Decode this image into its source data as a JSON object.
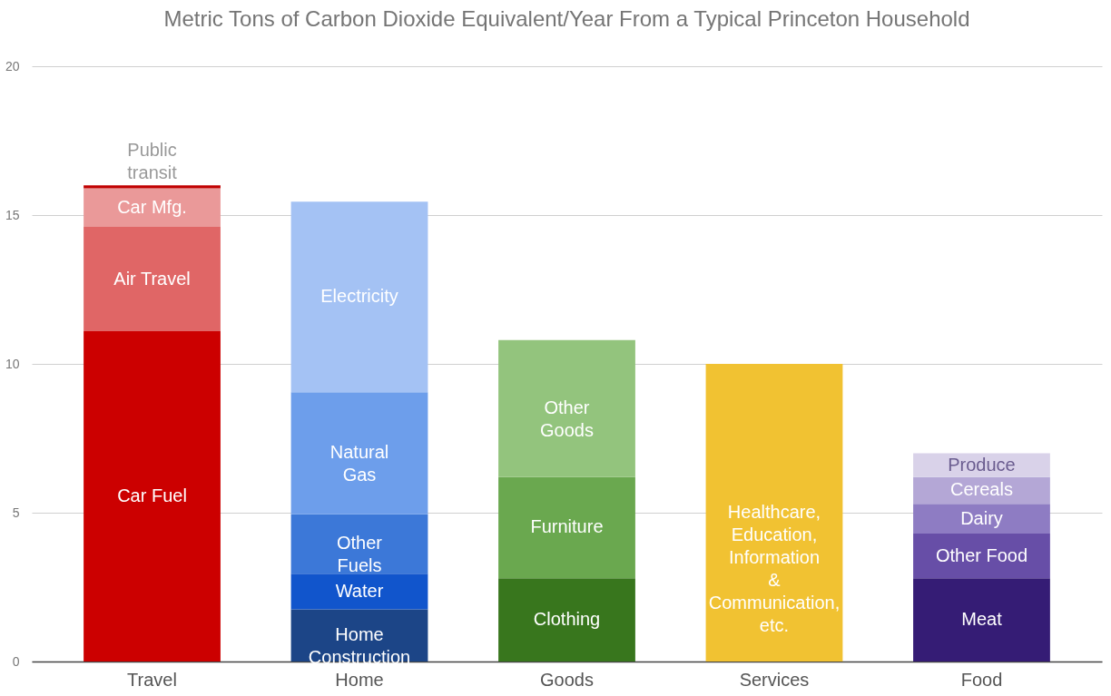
{
  "chart_data": {
    "type": "bar",
    "title": "Metric Tons of Carbon Dioxide Equivalent/Year From a Typical Princeton Household",
    "categories": [
      "Travel",
      "Home",
      "Goods",
      "Services",
      "Food"
    ],
    "stacked": true,
    "ylim": [
      0,
      20
    ],
    "yticks": [
      0,
      5,
      10,
      15,
      20
    ],
    "grid": "y",
    "legend": false,
    "series": [
      {
        "name": "Car Fuel",
        "color": "#cc0000",
        "values": [
          11.1,
          null,
          null,
          null,
          null
        ]
      },
      {
        "name": "Air Travel",
        "color": "#e06666",
        "values": [
          3.5,
          null,
          null,
          null,
          null
        ]
      },
      {
        "name": "Car Mfg.",
        "color": "#ea9999",
        "values": [
          1.3,
          null,
          null,
          null,
          null
        ]
      },
      {
        "name": "Public transit",
        "color": "#c00000",
        "values": [
          0.1,
          null,
          null,
          null,
          null
        ]
      },
      {
        "name": "Home Construction",
        "color": "#1c4587",
        "values": [
          null,
          1.75,
          null,
          null,
          null
        ]
      },
      {
        "name": "Water",
        "color": "#1155cc",
        "values": [
          null,
          1.2,
          null,
          null,
          null
        ]
      },
      {
        "name": "Other Fuels",
        "color": "#3c78d8",
        "values": [
          null,
          2.0,
          null,
          null,
          null
        ]
      },
      {
        "name": "Natural Gas",
        "color": "#6d9eeb",
        "values": [
          null,
          4.1,
          null,
          null,
          null
        ]
      },
      {
        "name": "Electricity",
        "color": "#a4c2f4",
        "values": [
          null,
          6.4,
          null,
          null,
          null
        ]
      },
      {
        "name": "Clothing",
        "color": "#38761d",
        "values": [
          null,
          null,
          2.8,
          null,
          null
        ]
      },
      {
        "name": "Furniture",
        "color": "#6aa84f",
        "values": [
          null,
          null,
          3.4,
          null,
          null
        ]
      },
      {
        "name": "Other Goods",
        "color": "#93c47d",
        "values": [
          null,
          null,
          4.6,
          null,
          null
        ]
      },
      {
        "name": "Healthcare, Education, Information & Communication, etc.",
        "color": "#f1c232",
        "values": [
          null,
          null,
          null,
          10.0,
          null
        ]
      },
      {
        "name": "Meat",
        "color": "#351c75",
        "values": [
          null,
          null,
          null,
          null,
          2.8
        ]
      },
      {
        "name": "Other Food",
        "color": "#674ea7",
        "values": [
          null,
          null,
          null,
          null,
          1.5
        ]
      },
      {
        "name": "Dairy",
        "color": "#8e7cc3",
        "values": [
          null,
          null,
          null,
          null,
          1.0
        ]
      },
      {
        "name": "Cereals",
        "color": "#b4a7d6",
        "values": [
          null,
          null,
          null,
          null,
          0.9
        ]
      },
      {
        "name": "Produce",
        "color": "#d9d2e9",
        "values": [
          null,
          null,
          null,
          null,
          0.8
        ]
      }
    ]
  }
}
